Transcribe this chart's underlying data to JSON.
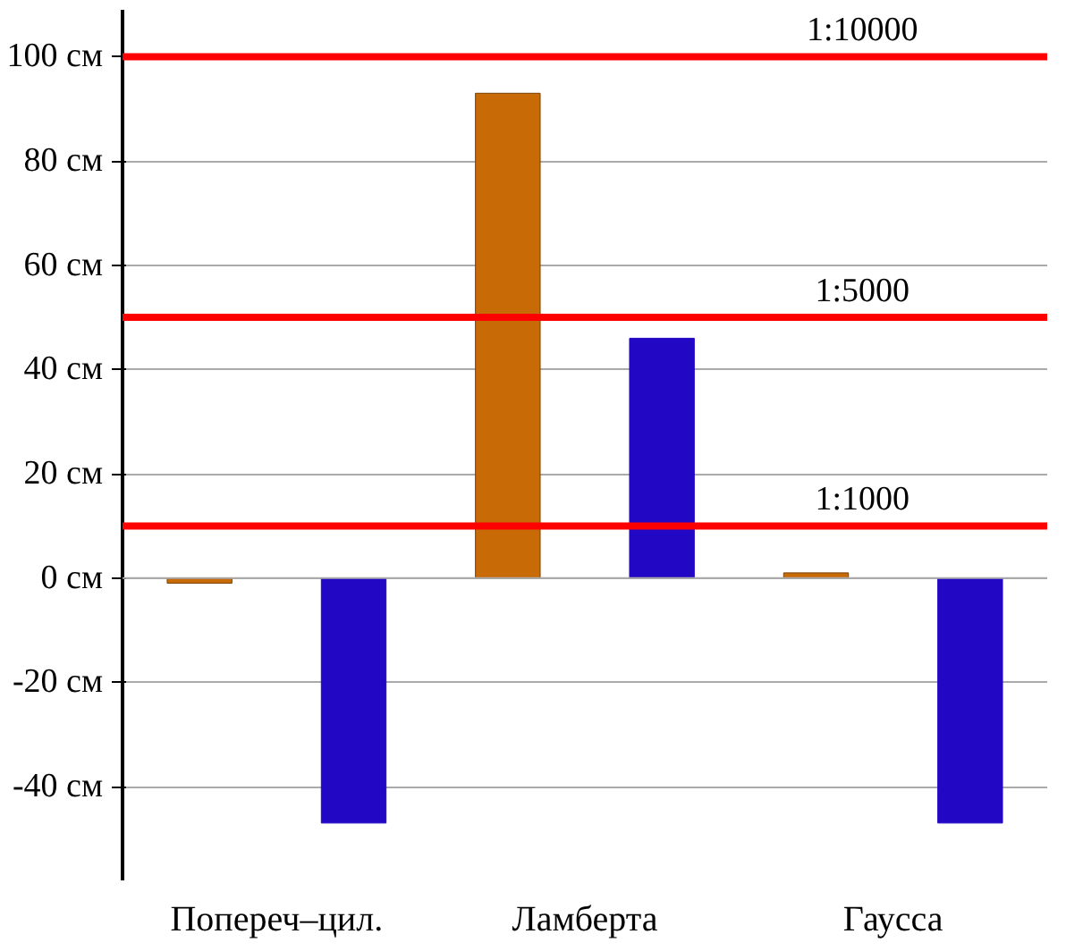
{
  "chart_data": {
    "type": "bar",
    "categories": [
      "Попереч–цил.",
      "Ламберта",
      "Гаусса"
    ],
    "series": [
      {
        "color": "#c86a06",
        "values": [
          -1,
          93,
          1
        ]
      },
      {
        "color": "#2208c4",
        "values": [
          -47,
          46,
          -47
        ]
      }
    ],
    "ylim": [
      -58,
      109
    ],
    "yticks": [
      {
        "value": -40,
        "label": "-40 см"
      },
      {
        "value": -20,
        "label": "-20 см"
      },
      {
        "value": 0,
        "label": "0 см"
      },
      {
        "value": 20,
        "label": "20 см"
      },
      {
        "value": 40,
        "label": "40 см"
      },
      {
        "value": 60,
        "label": "60 см"
      },
      {
        "value": 80,
        "label": "80 см"
      },
      {
        "value": 100,
        "label": "100 см"
      }
    ],
    "grid": "y",
    "ref_lines": [
      {
        "axis": "y",
        "value": 100,
        "label": "1:10000",
        "color": "#ff0000"
      },
      {
        "axis": "y",
        "value": 50,
        "label": "1:5000",
        "color": "#ff0000"
      },
      {
        "axis": "y",
        "value": 10,
        "label": "1:1000",
        "color": "#ff0000"
      }
    ]
  }
}
